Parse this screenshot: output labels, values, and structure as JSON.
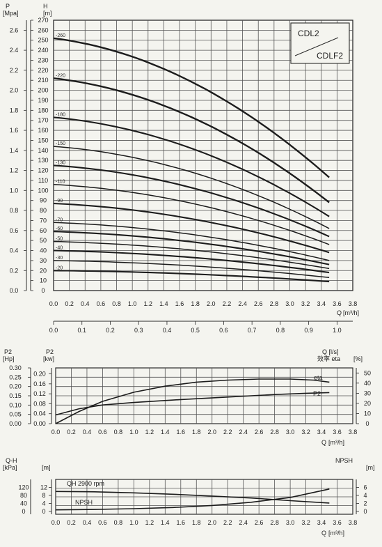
{
  "legend_box": {
    "line1": "CDL2",
    "line2": "CDLF2"
  },
  "chart_data": [
    {
      "type": "line",
      "id": "main",
      "axis_labels": {
        "p": "P",
        "p_unit": "[Mpa]",
        "h": "H",
        "h_unit": "[m]",
        "q": "Q",
        "q_unit": "[m³/h]"
      },
      "h_ticks": [
        0,
        10,
        20,
        30,
        40,
        50,
        60,
        70,
        80,
        90,
        100,
        110,
        120,
        130,
        140,
        150,
        160,
        170,
        180,
        190,
        200,
        210,
        220,
        230,
        240,
        250,
        260,
        270
      ],
      "p_ticks": [
        "0.0",
        "0.2",
        "0.4",
        "0.6",
        "0.8",
        "1.0",
        "1.2",
        "1.4",
        "1.6",
        "1.8",
        "2.0",
        "2.2",
        "2.4",
        "2.6"
      ],
      "q_ticks": [
        "0.0",
        "0.2",
        "0.4",
        "0.6",
        "0.8",
        "1.0",
        "1.2",
        "1.4",
        "1.6",
        "1.8",
        "2.0",
        "2.2",
        "2.4",
        "2.6",
        "2.8",
        "3.0",
        "3.2",
        "3.4",
        "3.6",
        "3.8"
      ],
      "ls_ticks": [
        "0.0",
        "0.1",
        "0.2",
        "0.3",
        "0.4",
        "0.5",
        "0.6",
        "0.7",
        "0.8",
        "0.9",
        "1.0"
      ],
      "ls_label": "Q [l/s]",
      "xlim": [
        0,
        3.8
      ],
      "ylim": [
        0,
        270
      ],
      "series": [
        {
          "name": "-260",
          "h0": 252,
          "hend": 113
        },
        {
          "name": "-220",
          "h0": 212,
          "hend": 88
        },
        {
          "name": "-180",
          "h0": 173,
          "hend": 74
        },
        {
          "name": "-150",
          "h0": 144,
          "hend": 62
        },
        {
          "name": "-130",
          "h0": 125,
          "hend": 54
        },
        {
          "name": "-110",
          "h0": 106,
          "hend": 46
        },
        {
          "name": "-90",
          "h0": 87,
          "hend": 38
        },
        {
          "name": "-70",
          "h0": 68,
          "hend": 30
        },
        {
          "name": "-60",
          "h0": 59,
          "hend": 26
        },
        {
          "name": "-50",
          "h0": 49,
          "hend": 22
        },
        {
          "name": "-40",
          "h0": 40,
          "hend": 18
        },
        {
          "name": "-30",
          "h0": 30,
          "hend": 13
        },
        {
          "name": "-20",
          "h0": 20,
          "hend": 9
        }
      ],
      "q_end": 3.5
    },
    {
      "type": "line",
      "id": "power",
      "axis_labels": {
        "hp": "P2",
        "hp_unit": "[Hp]",
        "kw": "P2",
        "kw_unit": "[kw]",
        "eta_head": "效率 eta",
        "eta_unit": "[%]",
        "q": "Q",
        "q_unit": "[m³/h]"
      },
      "hp_ticks": [
        "0.00",
        "0.05",
        "0.10",
        "0.15",
        "0.20",
        "0.25",
        "0.30"
      ],
      "kw_ticks": [
        "0.00",
        "0.04",
        "0.08",
        "0.12",
        "0.16",
        "0.20"
      ],
      "eta_ticks": [
        "0",
        "10",
        "20",
        "30",
        "40",
        "50"
      ],
      "q_ticks": [
        "0.0",
        "0.2",
        "0.4",
        "0.6",
        "0.8",
        "1.0",
        "1.2",
        "1.4",
        "1.6",
        "1.8",
        "2.0",
        "2.2",
        "2.4",
        "2.6",
        "2.8",
        "3.0",
        "3.2",
        "3.4",
        "3.6",
        "3.8"
      ],
      "series": [
        {
          "name": "eta",
          "label": "eta",
          "x": [
            0,
            0.3,
            0.6,
            1.0,
            1.4,
            1.8,
            2.2,
            2.6,
            3.0,
            3.3,
            3.5
          ],
          "y": [
            0,
            12,
            22,
            31,
            37,
            41,
            43,
            44,
            44,
            43,
            41
          ]
        },
        {
          "name": "P2",
          "label": "P2",
          "x": [
            0,
            0.3,
            0.6,
            1.0,
            1.6,
            2.2,
            2.8,
            3.2,
            3.5
          ],
          "y": [
            0.035,
            0.06,
            0.075,
            0.085,
            0.097,
            0.107,
            0.117,
            0.122,
            0.125
          ]
        }
      ]
    },
    {
      "type": "line",
      "id": "npsh",
      "axis_labels": {
        "qh": "Q-H",
        "kpa_unit": "[kPa]",
        "m_unit": "[m]",
        "npsh": "NPSH",
        "npsh_unit": "[m]",
        "q": "Q",
        "q_unit": "[m³/h]"
      },
      "kpa_ticks": [
        "0",
        "40",
        "80",
        "120"
      ],
      "m_ticks": [
        "0",
        "4",
        "8",
        "12"
      ],
      "npsh_ticks": [
        "0",
        "2",
        "4",
        "6"
      ],
      "q_ticks": [
        "0.0",
        "0.2",
        "0.4",
        "0.6",
        "0.8",
        "1.0",
        "1.2",
        "1.4",
        "1.6",
        "1.8",
        "2.0",
        "2.2",
        "2.4",
        "2.6",
        "2.8",
        "3.0",
        "3.2",
        "3.4",
        "3.6",
        "3.8"
      ],
      "series": [
        {
          "name": "QH 2900 rpm",
          "label": "QH  2900 rpm",
          "x": [
            0,
            0.5,
            1.0,
            1.5,
            2.0,
            2.5,
            3.0,
            3.5
          ],
          "y": [
            10,
            9.8,
            9.3,
            8.6,
            7.7,
            6.7,
            5.4,
            4.2
          ]
        },
        {
          "name": "NPSH",
          "label": "NPSH",
          "x": [
            0,
            0.5,
            1.0,
            1.5,
            2.0,
            2.5,
            3.0,
            3.5
          ],
          "y": [
            0.4,
            0.5,
            0.7,
            1.0,
            1.5,
            2.3,
            3.5,
            5.6
          ]
        }
      ]
    }
  ]
}
